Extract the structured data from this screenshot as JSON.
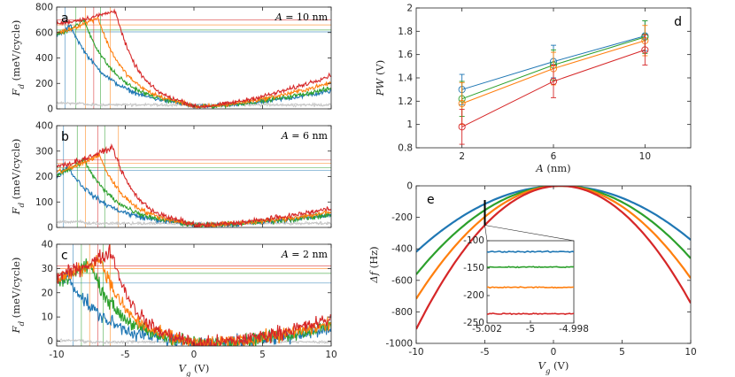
{
  "colors": {
    "blue": "#1f77b4",
    "green": "#2ca02c",
    "orange": "#ff7f0e",
    "red": "#d62728",
    "gray": "#c8c8c8"
  },
  "chart_data": [
    {
      "id": "a",
      "type": "line",
      "panel_label": "a",
      "annotation": "A = 10 nm",
      "ylabel": "F_d (meV/cycle)",
      "xlabel": "",
      "xlim": [
        -10,
        10
      ],
      "ylim": [
        0,
        800
      ],
      "xticks": [
        -10,
        -5,
        0,
        5,
        10
      ],
      "xtick_labels": [
        "",
        "",
        "",
        "",
        ""
      ],
      "yticks": [
        0,
        200,
        400,
        600,
        800
      ],
      "ytick_labels": [
        "0",
        "200",
        "400",
        "600",
        "800"
      ],
      "series": [
        {
          "name": "blue",
          "color": "blue",
          "peak_x": -9.0,
          "peak_y": 655,
          "start_y": 575,
          "right_y": 140
        },
        {
          "name": "green",
          "color": "green",
          "peak_x": -8.0,
          "peak_y": 695,
          "start_y": 585,
          "right_y": 160
        },
        {
          "name": "orange",
          "color": "orange",
          "peak_x": -7.0,
          "peak_y": 720,
          "start_y": 600,
          "right_y": 205
        },
        {
          "name": "red",
          "color": "red",
          "peak_x": -5.7,
          "peak_y": 770,
          "start_y": 670,
          "right_y": 265
        }
      ],
      "vlines": [
        {
          "x": -9.4,
          "color": "blue"
        },
        {
          "x": -8.6,
          "color": "green"
        },
        {
          "x": -7.9,
          "color": "orange"
        },
        {
          "x": -7.3,
          "color": "red"
        },
        {
          "x": -6.8,
          "color": "green"
        },
        {
          "x": -6.1,
          "color": "orange"
        }
      ],
      "hlines": [
        {
          "y": 700,
          "color": "red"
        },
        {
          "y": 660,
          "color": "orange"
        },
        {
          "y": 620,
          "color": "green"
        },
        {
          "y": 605,
          "color": "blue"
        }
      ]
    },
    {
      "id": "b",
      "type": "line",
      "panel_label": "b",
      "annotation": "A = 6 nm",
      "ylabel": "F_d (meV/cycle)",
      "xlabel": "",
      "xlim": [
        -10,
        10
      ],
      "ylim": [
        0,
        400
      ],
      "xticks": [
        -10,
        -5,
        0,
        5,
        10
      ],
      "xtick_labels": [
        "",
        "",
        "",
        "",
        ""
      ],
      "yticks": [
        0,
        100,
        200,
        300,
        400
      ],
      "ytick_labels": [
        "0",
        "100",
        "200",
        "300",
        "400"
      ],
      "series": [
        {
          "name": "blue",
          "color": "blue",
          "peak_x": -9.2,
          "peak_y": 238,
          "start_y": 205,
          "right_y": 50
        },
        {
          "name": "green",
          "color": "green",
          "peak_x": -8.0,
          "peak_y": 265,
          "start_y": 208,
          "right_y": 50
        },
        {
          "name": "orange",
          "color": "orange",
          "peak_x": -6.9,
          "peak_y": 285,
          "start_y": 218,
          "right_y": 60
        },
        {
          "name": "red",
          "color": "red",
          "peak_x": -5.9,
          "peak_y": 315,
          "start_y": 240,
          "right_y": 75
        }
      ],
      "vlines": [
        {
          "x": -9.5,
          "color": "blue"
        },
        {
          "x": -8.5,
          "color": "green"
        },
        {
          "x": -7.9,
          "color": "orange"
        },
        {
          "x": -7.0,
          "color": "red"
        },
        {
          "x": -6.5,
          "color": "green"
        },
        {
          "x": -5.5,
          "color": "orange"
        }
      ],
      "hlines": [
        {
          "y": 265,
          "color": "red"
        },
        {
          "y": 252,
          "color": "orange"
        },
        {
          "y": 235,
          "color": "green"
        },
        {
          "y": 225,
          "color": "blue"
        }
      ]
    },
    {
      "id": "c",
      "type": "line",
      "panel_label": "c",
      "annotation": "A = 2 nm",
      "ylabel": "F_d (meV/cycle)",
      "xlabel": "V_g (V)",
      "xlim": [
        -10,
        10
      ],
      "ylim": [
        -2,
        40
      ],
      "xticks": [
        -10,
        -5,
        0,
        5,
        10
      ],
      "xtick_labels": [
        "-10",
        "-5",
        "0",
        "5",
        "10"
      ],
      "yticks": [
        0,
        10,
        20,
        30,
        40
      ],
      "ytick_labels": [
        "0",
        "10",
        "20",
        "30",
        "40"
      ],
      "series": [
        {
          "name": "blue",
          "color": "blue",
          "peak_x": -9.2,
          "peak_y": 27,
          "start_y": 24,
          "right_y": 5
        },
        {
          "name": "green",
          "color": "green",
          "peak_x": -7.6,
          "peak_y": 32,
          "start_y": 25,
          "right_y": 6
        },
        {
          "name": "orange",
          "color": "orange",
          "peak_x": -6.8,
          "peak_y": 34,
          "start_y": 26,
          "right_y": 7
        },
        {
          "name": "red",
          "color": "red",
          "peak_x": -6.0,
          "peak_y": 37,
          "start_y": 27,
          "right_y": 9
        }
      ],
      "vlines": [
        {
          "x": -8.8,
          "color": "blue"
        },
        {
          "x": -8.2,
          "color": "green"
        },
        {
          "x": -7.6,
          "color": "orange"
        },
        {
          "x": -7.0,
          "color": "red"
        },
        {
          "x": -6.6,
          "color": "green"
        },
        {
          "x": -6.1,
          "color": "orange"
        }
      ],
      "hlines": [
        {
          "y": 31,
          "color": "red"
        },
        {
          "y": 30,
          "color": "orange"
        },
        {
          "y": 28,
          "color": "green"
        },
        {
          "y": 24,
          "color": "blue"
        }
      ]
    },
    {
      "id": "d",
      "type": "line",
      "panel_label": "d",
      "ylabel": "PW (V)",
      "xlabel": "A (nm)",
      "xlim": [
        0,
        12
      ],
      "ylim": [
        0.8,
        2
      ],
      "x": [
        2,
        6,
        10
      ],
      "xticks": [
        2,
        6,
        10
      ],
      "xtick_labels": [
        "2",
        "6",
        "10"
      ],
      "yticks": [
        0.8,
        1,
        1.2,
        1.4,
        1.6,
        1.8,
        2
      ],
      "ytick_labels": [
        "0.8",
        "1",
        "1.2",
        "1.4",
        "1.6",
        "1.8",
        "2"
      ],
      "series": [
        {
          "name": "blue",
          "color": "blue",
          "values": [
            1.3,
            1.54,
            1.76
          ],
          "err": [
            0.13,
            0.14,
            0.13
          ]
        },
        {
          "name": "green",
          "color": "green",
          "values": [
            1.22,
            1.51,
            1.75
          ],
          "err": [
            0.15,
            0.13,
            0.14
          ]
        },
        {
          "name": "orange",
          "color": "orange",
          "values": [
            1.18,
            1.48,
            1.72
          ],
          "err": [
            0.18,
            0.14,
            0.13
          ]
        },
        {
          "name": "red",
          "color": "red",
          "values": [
            0.98,
            1.37,
            1.64
          ],
          "err": [
            0.15,
            0.14,
            0.13
          ]
        }
      ]
    },
    {
      "id": "e",
      "type": "line",
      "panel_label": "e",
      "ylabel": "Δf (Hz)",
      "xlabel": "V_g (V)",
      "xlim": [
        -10,
        10
      ],
      "ylim": [
        -1000,
        0
      ],
      "xticks": [
        -10,
        -5,
        0,
        5,
        10
      ],
      "xtick_labels": [
        "-10",
        "-5",
        "0",
        "5",
        "10"
      ],
      "yticks": [
        -1000,
        -800,
        -600,
        -400,
        -200,
        0
      ],
      "ytick_labels": [
        "-1000",
        "-800",
        "-600",
        "-400",
        "-200",
        "0"
      ],
      "series": [
        {
          "name": "blue",
          "color": "blue",
          "vertex_x": 0.5,
          "curvature": 3.8
        },
        {
          "name": "green",
          "color": "green",
          "vertex_x": 0.5,
          "curvature": 5.1
        },
        {
          "name": "orange",
          "color": "orange",
          "vertex_x": 0.5,
          "curvature": 6.5
        },
        {
          "name": "red",
          "color": "red",
          "vertex_x": 0.5,
          "curvature": 8.25
        }
      ],
      "inset": {
        "xlim": [
          -5.002,
          -4.998
        ],
        "ylim": [
          -250,
          -100
        ],
        "xticks": [
          -5.002,
          -5,
          -4.998
        ],
        "xtick_labels": [
          "-5.002",
          "-5",
          "-4.998"
        ],
        "yticks": [
          -250,
          -200,
          -150,
          -100
        ],
        "ytick_labels": [
          "-250",
          "-200",
          "-150",
          "-100"
        ],
        "values": [
          {
            "color": "blue",
            "y": -120
          },
          {
            "color": "green",
            "y": -148
          },
          {
            "color": "orange",
            "y": -185
          },
          {
            "color": "red",
            "y": -233
          }
        ]
      }
    }
  ]
}
